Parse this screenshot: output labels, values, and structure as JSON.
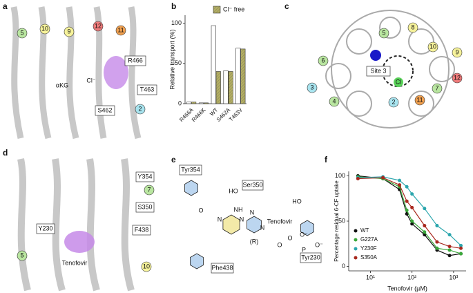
{
  "panels": {
    "a": {
      "label": "a",
      "circles": [
        "5",
        "10",
        "9",
        "12",
        "11",
        "2"
      ],
      "boxes": [
        "R466",
        "T463",
        "S462"
      ],
      "texts": [
        "αKG",
        "Cl⁻"
      ]
    },
    "b": {
      "label": "b"
    },
    "c": {
      "label": "c",
      "circles": [
        "5",
        "8",
        "10",
        "9",
        "6",
        "12",
        "3",
        "7",
        "4",
        "2",
        "11"
      ],
      "boxes": [
        "Site 3"
      ],
      "texts": [
        "Cl"
      ]
    },
    "d": {
      "label": "d",
      "circles": [
        "7",
        "10",
        "5"
      ],
      "boxes": [
        "Y354",
        "S350",
        "F438",
        "Y230"
      ],
      "texts": [
        "Tenofovir"
      ]
    },
    "e": {
      "label": "e",
      "boxes": [
        "Tyr354",
        "Ser350",
        "Phe438",
        "Tyr230"
      ],
      "texts": [
        "Tenofovir",
        "NH",
        "HO",
        "HO",
        "O",
        "N",
        "N",
        "N",
        "N",
        "O",
        "P",
        "O⁻",
        "O⁻",
        "O",
        "(R)"
      ]
    },
    "f": {
      "label": "f"
    }
  },
  "chart_data": [
    {
      "type": "bar",
      "ylabel": "Relative transport (%)",
      "categories": [
        "R466A",
        "R466K",
        "WT",
        "S462A",
        "T463V"
      ],
      "series": [
        {
          "color": "#ffffff",
          "values": [
            2,
            1,
            97,
            41,
            69
          ]
        },
        {
          "name": "Cl⁻ free",
          "color": "#b3ae62",
          "hatch": true,
          "values": [
            2,
            1,
            40,
            40,
            68
          ]
        }
      ],
      "ylim": [
        0,
        110
      ],
      "yticks": [
        0,
        50,
        100
      ],
      "legend": "top-right"
    },
    {
      "type": "line",
      "xlabel": "Tenofovir (µM)",
      "ylabel": "Percentage residual 6-CF uptake",
      "log_x": true,
      "x": [
        5,
        20,
        50,
        75,
        100,
        200,
        400,
        800,
        1500
      ],
      "series": [
        {
          "name": "WT",
          "color": "#111111",
          "values": [
            100,
            97,
            85,
            58,
            47,
            35,
            18,
            12,
            14
          ]
        },
        {
          "name": "G227A",
          "color": "#3aa83a",
          "values": [
            99,
            97,
            88,
            62,
            50,
            38,
            20,
            18,
            14
          ]
        },
        {
          "name": "Y230F",
          "color": "#2ba6ad",
          "values": [
            98,
            99,
            95,
            88,
            80,
            64,
            45,
            35,
            23
          ]
        },
        {
          "name": "S350A",
          "color": "#a8281e",
          "values": [
            97,
            98,
            90,
            72,
            65,
            45,
            27,
            22,
            20
          ]
        }
      ],
      "xlim": [
        3,
        2000
      ],
      "xticks": [
        {
          "value": 10,
          "label": "10¹"
        },
        {
          "value": 100,
          "label": "10²"
        },
        {
          "value": 1000,
          "label": "10³"
        }
      ],
      "ylim": [
        -5,
        105
      ],
      "yticks": [
        0,
        50,
        100
      ],
      "legend": "bottom-left"
    }
  ]
}
